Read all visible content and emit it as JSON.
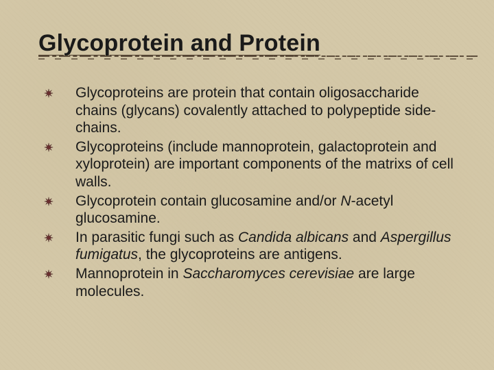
{
  "slide": {
    "title": "Glycoprotein and Protein",
    "background_color": "#d4c8a8",
    "title_color": "#1a1a1a",
    "title_fontsize": 34,
    "body_fontsize": 21,
    "body_color": "#1a1a1a",
    "dash_color": "#4a3a2a",
    "bullet_color": "#6b2f2f",
    "bullets": [
      {
        "segments": [
          {
            "text": "Glycoproteins are protein that contain oligosaccharide chains (glycans) covalently attached to polypeptide side-chains.",
            "italic": false
          }
        ]
      },
      {
        "segments": [
          {
            "text": "Glycoproteins (include mannoprotein, galactoprotein and xyloprotein) are important components of the matrixs of cell walls.",
            "italic": false
          }
        ]
      },
      {
        "segments": [
          {
            "text": "Glycoprotein contain glucosamine and/or ",
            "italic": false
          },
          {
            "text": "N",
            "italic": true
          },
          {
            "text": "-acetyl glucosamine.",
            "italic": false
          }
        ]
      },
      {
        "segments": [
          {
            "text": "In parasitic fungi such as ",
            "italic": false
          },
          {
            "text": "Candida albicans",
            "italic": true
          },
          {
            "text": " and ",
            "italic": false
          },
          {
            "text": "Aspergillus fumigatus",
            "italic": true
          },
          {
            "text": ", the glycoproteins are antigens.",
            "italic": false
          }
        ]
      },
      {
        "segments": [
          {
            "text": "Mannoprotein in ",
            "italic": false
          },
          {
            "text": "Saccharomyces cerevisiae",
            "italic": true
          },
          {
            "text": " are large molecules.",
            "italic": false
          }
        ]
      }
    ]
  }
}
